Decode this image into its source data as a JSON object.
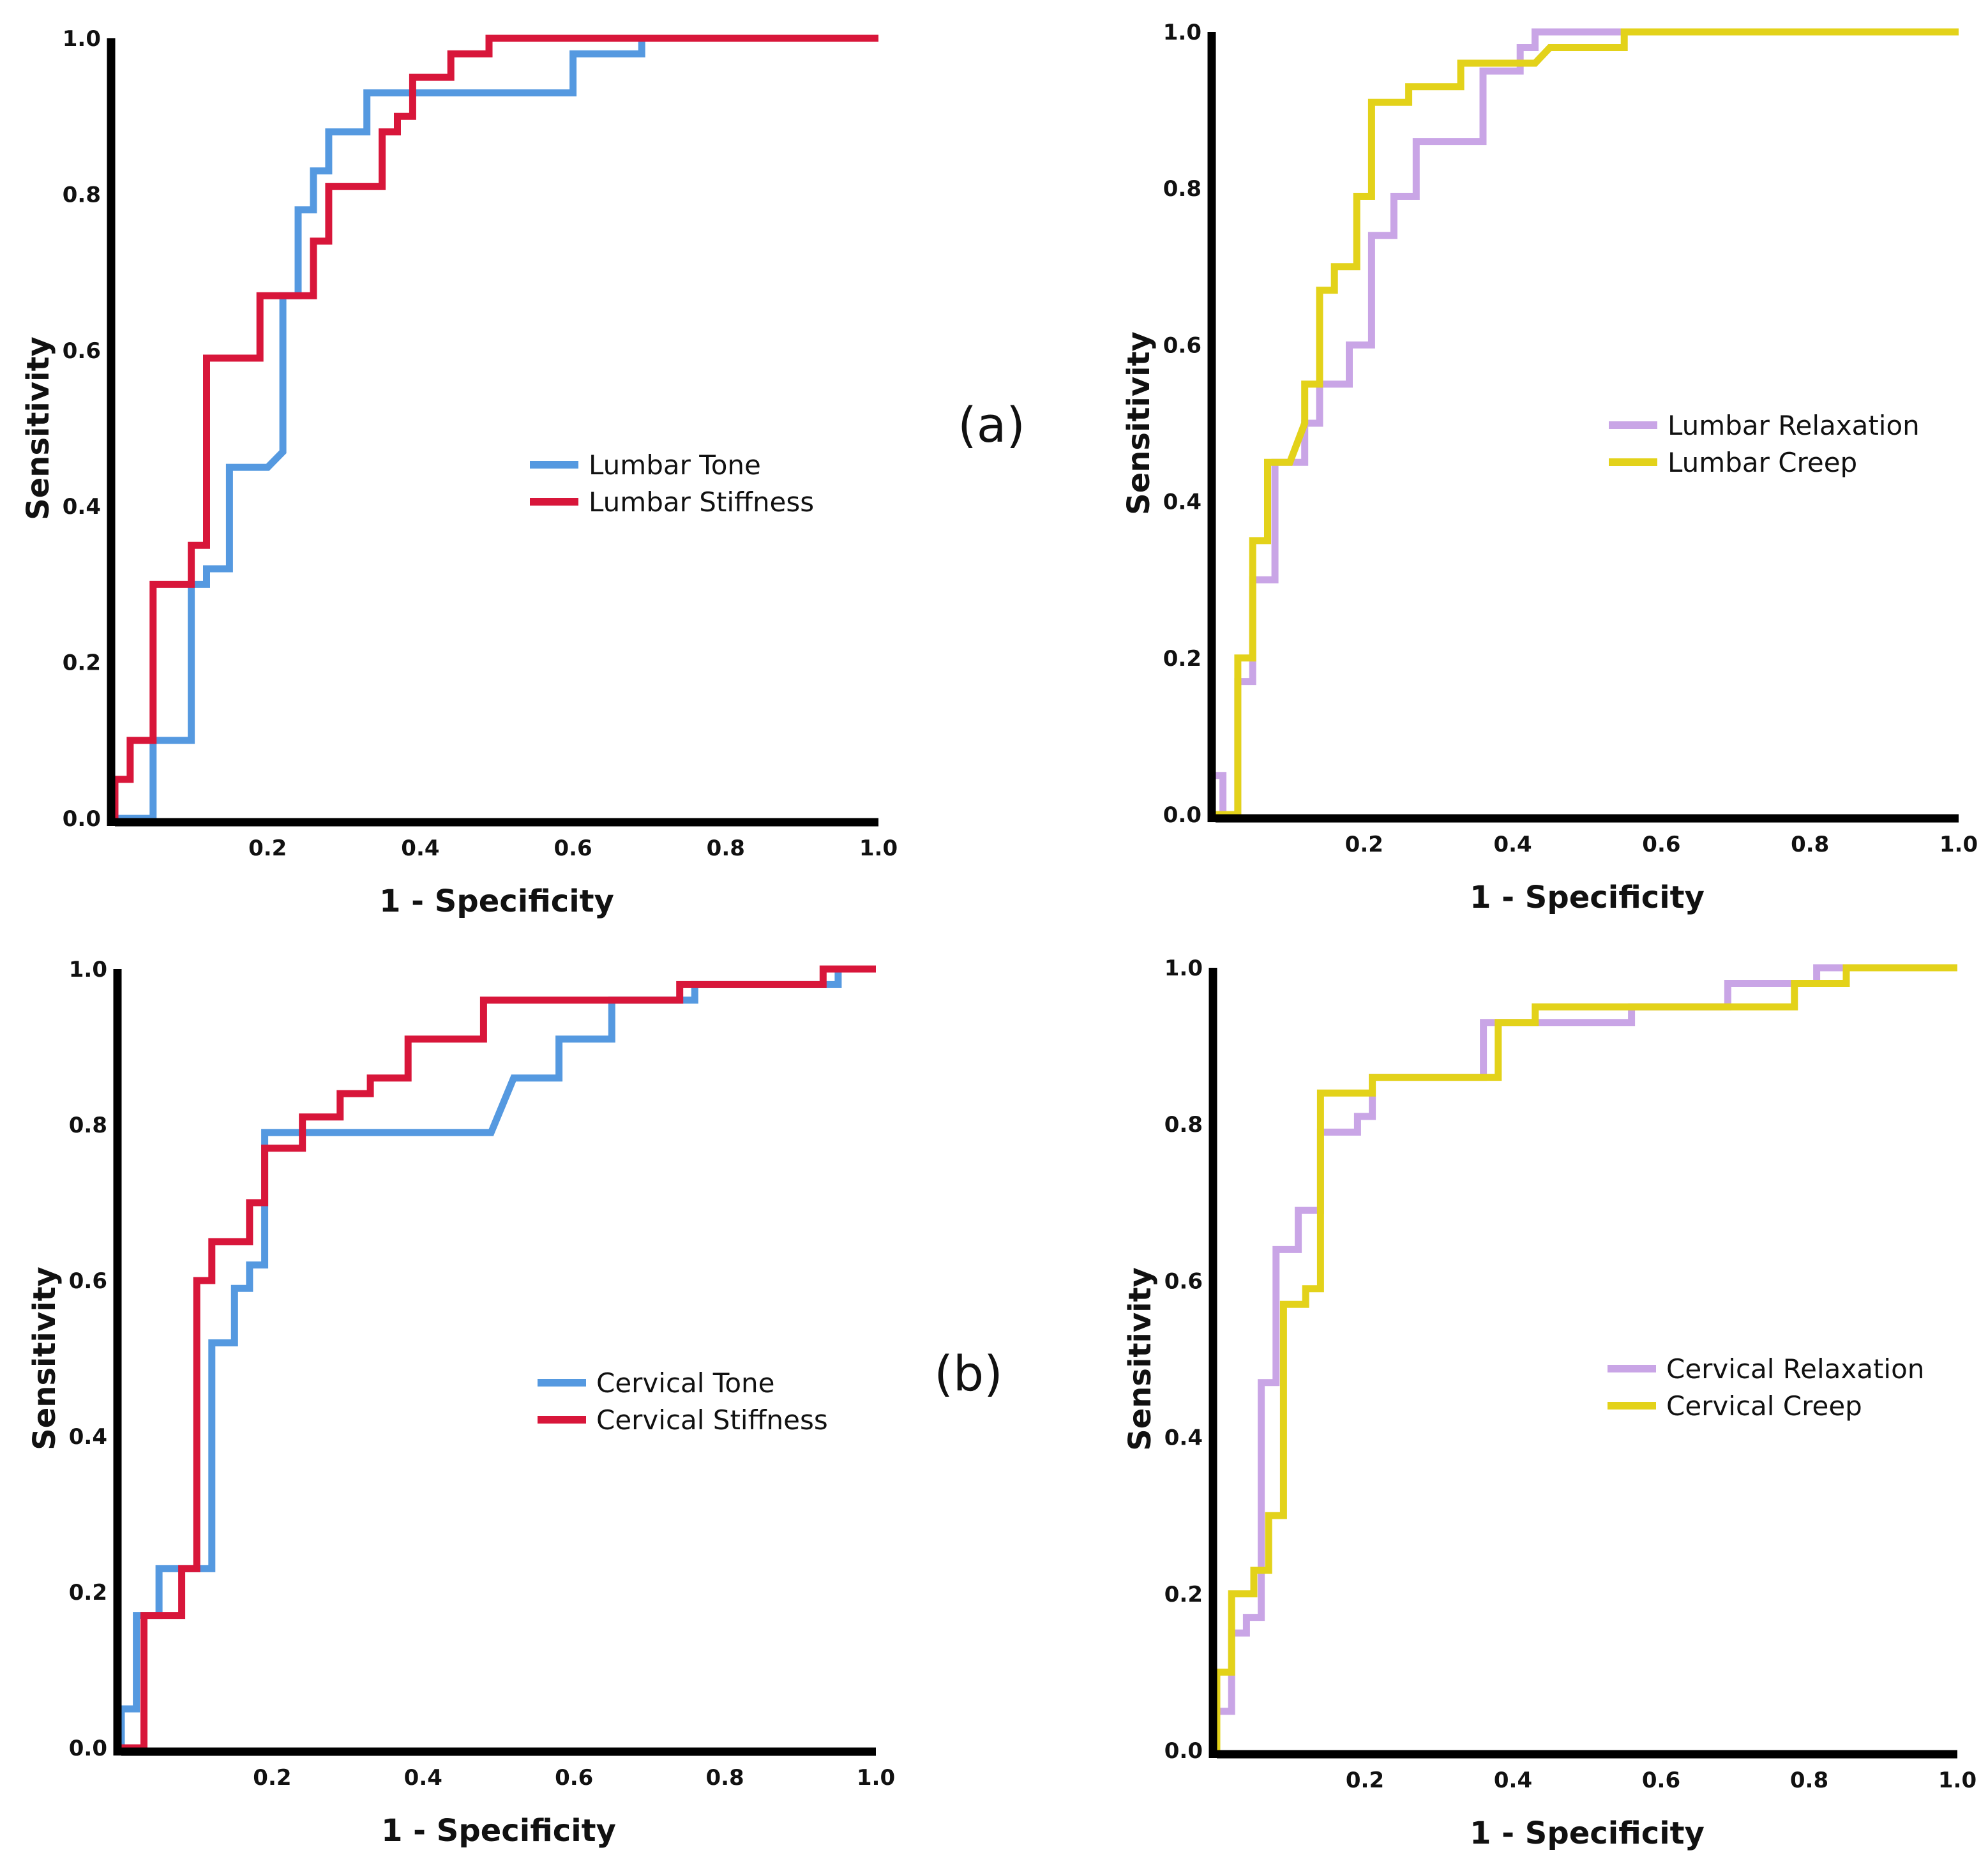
{
  "panel_labels": [
    "(a)",
    "(b)"
  ],
  "chart_data": [
    {
      "type": "line",
      "panel": "a",
      "xlabel": "1 - Specificity",
      "ylabel": "Sensitivity",
      "xlim": [
        0,
        1
      ],
      "ylim": [
        0,
        1
      ],
      "xticks": [
        "0.2",
        "0.4",
        "0.6",
        "0.8",
        "1.0"
      ],
      "yticks": [
        "0.0",
        "0.2",
        "0.4",
        "0.6",
        "0.8",
        "1.0"
      ],
      "legend_position": "center-right",
      "series": [
        {
          "name": "Lumbar Tone",
          "color": "#5599e0",
          "points": [
            [
              0,
              0
            ],
            [
              0.05,
              0
            ],
            [
              0.05,
              0.1
            ],
            [
              0.1,
              0.1
            ],
            [
              0.1,
              0.3
            ],
            [
              0.12,
              0.3
            ],
            [
              0.12,
              0.32
            ],
            [
              0.15,
              0.32
            ],
            [
              0.15,
              0.45
            ],
            [
              0.2,
              0.45
            ],
            [
              0.22,
              0.47
            ],
            [
              0.22,
              0.67
            ],
            [
              0.24,
              0.67
            ],
            [
              0.24,
              0.78
            ],
            [
              0.26,
              0.78
            ],
            [
              0.26,
              0.83
            ],
            [
              0.28,
              0.83
            ],
            [
              0.28,
              0.88
            ],
            [
              0.33,
              0.88
            ],
            [
              0.33,
              0.93
            ],
            [
              0.6,
              0.93
            ],
            [
              0.6,
              0.98
            ],
            [
              0.69,
              0.98
            ],
            [
              0.69,
              1.0
            ],
            [
              1.0,
              1.0
            ]
          ]
        },
        {
          "name": "Lumbar Stiffness",
          "color": "#d8163a",
          "points": [
            [
              0,
              0
            ],
            [
              0,
              0.05
            ],
            [
              0.02,
              0.05
            ],
            [
              0.02,
              0.1
            ],
            [
              0.05,
              0.1
            ],
            [
              0.05,
              0.3
            ],
            [
              0.1,
              0.3
            ],
            [
              0.1,
              0.35
            ],
            [
              0.12,
              0.35
            ],
            [
              0.12,
              0.59
            ],
            [
              0.19,
              0.59
            ],
            [
              0.19,
              0.67
            ],
            [
              0.26,
              0.67
            ],
            [
              0.26,
              0.74
            ],
            [
              0.28,
              0.74
            ],
            [
              0.28,
              0.81
            ],
            [
              0.35,
              0.81
            ],
            [
              0.35,
              0.88
            ],
            [
              0.37,
              0.88
            ],
            [
              0.37,
              0.9
            ],
            [
              0.39,
              0.9
            ],
            [
              0.39,
              0.95
            ],
            [
              0.44,
              0.95
            ],
            [
              0.44,
              0.98
            ],
            [
              0.49,
              0.98
            ],
            [
              0.49,
              1.0
            ],
            [
              1.0,
              1.0
            ]
          ]
        }
      ]
    },
    {
      "type": "line",
      "panel": "a",
      "xlabel": "1 - Specificity",
      "ylabel": "Sensitivity",
      "xlim": [
        0,
        1
      ],
      "ylim": [
        0,
        1
      ],
      "xticks": [
        "0.2",
        "0.4",
        "0.6",
        "0.8",
        "1.0"
      ],
      "yticks": [
        "0.0",
        "0.2",
        "0.4",
        "0.6",
        "0.8",
        "1.0"
      ],
      "legend_position": "center-right",
      "series": [
        {
          "name": "Lumbar Relaxation",
          "color": "#c9a5e6",
          "points": [
            [
              0,
              0.05
            ],
            [
              0.01,
              0.05
            ],
            [
              0.01,
              0
            ],
            [
              0.03,
              0
            ],
            [
              0.03,
              0.17
            ],
            [
              0.05,
              0.17
            ],
            [
              0.05,
              0.3
            ],
            [
              0.08,
              0.3
            ],
            [
              0.08,
              0.45
            ],
            [
              0.12,
              0.45
            ],
            [
              0.12,
              0.5
            ],
            [
              0.14,
              0.5
            ],
            [
              0.14,
              0.55
            ],
            [
              0.18,
              0.55
            ],
            [
              0.18,
              0.6
            ],
            [
              0.21,
              0.6
            ],
            [
              0.21,
              0.74
            ],
            [
              0.24,
              0.74
            ],
            [
              0.24,
              0.79
            ],
            [
              0.27,
              0.79
            ],
            [
              0.27,
              0.86
            ],
            [
              0.36,
              0.86
            ],
            [
              0.36,
              0.95
            ],
            [
              0.41,
              0.95
            ],
            [
              0.41,
              0.98
            ],
            [
              0.43,
              0.98
            ],
            [
              0.43,
              1.0
            ],
            [
              1.0,
              1.0
            ]
          ]
        },
        {
          "name": "Lumbar Creep",
          "color": "#e3d21a",
          "points": [
            [
              0,
              0
            ],
            [
              0.03,
              0
            ],
            [
              0.03,
              0.2
            ],
            [
              0.05,
              0.2
            ],
            [
              0.05,
              0.35
            ],
            [
              0.07,
              0.35
            ],
            [
              0.07,
              0.45
            ],
            [
              0.1,
              0.45
            ],
            [
              0.12,
              0.5
            ],
            [
              0.12,
              0.55
            ],
            [
              0.14,
              0.55
            ],
            [
              0.14,
              0.67
            ],
            [
              0.16,
              0.67
            ],
            [
              0.16,
              0.7
            ],
            [
              0.19,
              0.7
            ],
            [
              0.19,
              0.79
            ],
            [
              0.21,
              0.79
            ],
            [
              0.21,
              0.91
            ],
            [
              0.26,
              0.91
            ],
            [
              0.26,
              0.93
            ],
            [
              0.33,
              0.93
            ],
            [
              0.33,
              0.96
            ],
            [
              0.43,
              0.96
            ],
            [
              0.45,
              0.98
            ],
            [
              0.55,
              0.98
            ],
            [
              0.55,
              1.0
            ],
            [
              1.0,
              1.0
            ]
          ]
        }
      ]
    },
    {
      "type": "line",
      "panel": "b",
      "xlabel": "1 - Specificity",
      "ylabel": "Sensitivity",
      "xlim": [
        0,
        1
      ],
      "ylim": [
        0,
        1
      ],
      "xticks": [
        "0.2",
        "0.4",
        "0.6",
        "0.8",
        "1.0"
      ],
      "yticks": [
        "0.0",
        "0.2",
        "0.4",
        "0.6",
        "0.8",
        "1.0"
      ],
      "legend_position": "center-right",
      "series": [
        {
          "name": "Cervical Tone",
          "color": "#5599e0",
          "points": [
            [
              0,
              0
            ],
            [
              0,
              0.05
            ],
            [
              0.02,
              0.05
            ],
            [
              0.02,
              0.17
            ],
            [
              0.05,
              0.17
            ],
            [
              0.05,
              0.23
            ],
            [
              0.12,
              0.23
            ],
            [
              0.12,
              0.52
            ],
            [
              0.15,
              0.52
            ],
            [
              0.15,
              0.59
            ],
            [
              0.17,
              0.59
            ],
            [
              0.17,
              0.62
            ],
            [
              0.19,
              0.62
            ],
            [
              0.19,
              0.79
            ],
            [
              0.49,
              0.79
            ],
            [
              0.52,
              0.86
            ],
            [
              0.58,
              0.86
            ],
            [
              0.58,
              0.91
            ],
            [
              0.65,
              0.91
            ],
            [
              0.65,
              0.96
            ],
            [
              0.76,
              0.96
            ],
            [
              0.76,
              0.98
            ],
            [
              0.95,
              0.98
            ],
            [
              0.95,
              1.0
            ],
            [
              1.0,
              1.0
            ]
          ]
        },
        {
          "name": "Cervical Stiffness",
          "color": "#d8163a",
          "points": [
            [
              0,
              0
            ],
            [
              0.03,
              0
            ],
            [
              0.03,
              0.17
            ],
            [
              0.08,
              0.17
            ],
            [
              0.08,
              0.23
            ],
            [
              0.1,
              0.23
            ],
            [
              0.1,
              0.6
            ],
            [
              0.12,
              0.6
            ],
            [
              0.12,
              0.65
            ],
            [
              0.17,
              0.65
            ],
            [
              0.17,
              0.7
            ],
            [
              0.19,
              0.7
            ],
            [
              0.19,
              0.77
            ],
            [
              0.24,
              0.77
            ],
            [
              0.24,
              0.81
            ],
            [
              0.29,
              0.81
            ],
            [
              0.29,
              0.84
            ],
            [
              0.33,
              0.84
            ],
            [
              0.33,
              0.86
            ],
            [
              0.38,
              0.86
            ],
            [
              0.38,
              0.91
            ],
            [
              0.48,
              0.91
            ],
            [
              0.48,
              0.96
            ],
            [
              0.74,
              0.96
            ],
            [
              0.74,
              0.98
            ],
            [
              0.93,
              0.98
            ],
            [
              0.93,
              1.0
            ],
            [
              1.0,
              1.0
            ]
          ]
        }
      ]
    },
    {
      "type": "line",
      "panel": "b",
      "xlabel": "1 - Specificity",
      "ylabel": "Sensitivity",
      "xlim": [
        0,
        1
      ],
      "ylim": [
        0,
        1
      ],
      "xticks": [
        "0.2",
        "0.4",
        "0.6",
        "0.8",
        "1.0"
      ],
      "yticks": [
        "0.0",
        "0.2",
        "0.4",
        "0.6",
        "0.8",
        "1.0"
      ],
      "legend_position": "center-right",
      "series": [
        {
          "name": "Cervical Relaxation",
          "color": "#c9a5e6",
          "points": [
            [
              0,
              0
            ],
            [
              0,
              0.05
            ],
            [
              0.02,
              0.05
            ],
            [
              0.02,
              0.15
            ],
            [
              0.04,
              0.15
            ],
            [
              0.04,
              0.17
            ],
            [
              0.06,
              0.17
            ],
            [
              0.06,
              0.47
            ],
            [
              0.08,
              0.47
            ],
            [
              0.08,
              0.64
            ],
            [
              0.11,
              0.64
            ],
            [
              0.11,
              0.69
            ],
            [
              0.14,
              0.69
            ],
            [
              0.14,
              0.79
            ],
            [
              0.19,
              0.79
            ],
            [
              0.19,
              0.81
            ],
            [
              0.21,
              0.81
            ],
            [
              0.21,
              0.86
            ],
            [
              0.36,
              0.86
            ],
            [
              0.36,
              0.93
            ],
            [
              0.56,
              0.93
            ],
            [
              0.56,
              0.95
            ],
            [
              0.69,
              0.95
            ],
            [
              0.69,
              0.98
            ],
            [
              0.81,
              0.98
            ],
            [
              0.81,
              1.0
            ],
            [
              1.0,
              1.0
            ]
          ]
        },
        {
          "name": "Cervical Creep",
          "color": "#e3d21a",
          "points": [
            [
              0,
              0
            ],
            [
              0,
              0.1
            ],
            [
              0.02,
              0.1
            ],
            [
              0.02,
              0.2
            ],
            [
              0.05,
              0.2
            ],
            [
              0.05,
              0.23
            ],
            [
              0.07,
              0.23
            ],
            [
              0.07,
              0.3
            ],
            [
              0.09,
              0.3
            ],
            [
              0.09,
              0.57
            ],
            [
              0.12,
              0.57
            ],
            [
              0.12,
              0.59
            ],
            [
              0.14,
              0.59
            ],
            [
              0.14,
              0.84
            ],
            [
              0.21,
              0.84
            ],
            [
              0.21,
              0.86
            ],
            [
              0.38,
              0.86
            ],
            [
              0.38,
              0.93
            ],
            [
              0.43,
              0.93
            ],
            [
              0.43,
              0.95
            ],
            [
              0.78,
              0.95
            ],
            [
              0.78,
              0.98
            ],
            [
              0.85,
              0.98
            ],
            [
              0.85,
              1.0
            ],
            [
              1.0,
              1.0
            ]
          ]
        }
      ]
    }
  ]
}
